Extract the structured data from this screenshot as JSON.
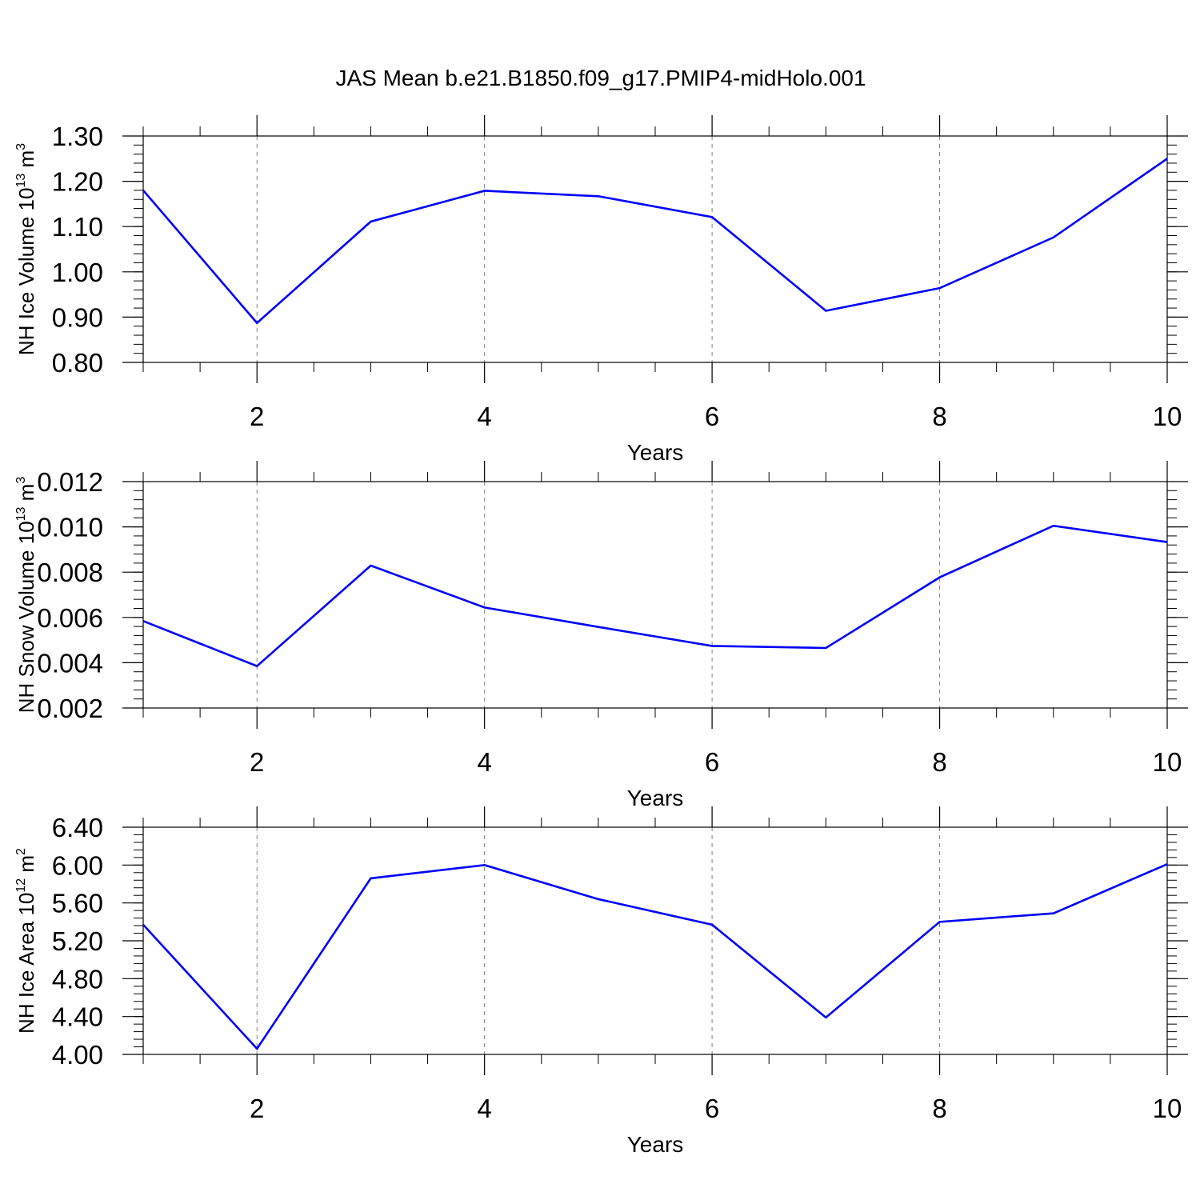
{
  "title": "JAS Mean b.e21.B1850.f09_g17.PMIP4-midHolo.001",
  "line_color": "#0000ff",
  "axis_color": "#000000",
  "grid_color": "#808080",
  "chart_data": [
    {
      "type": "line",
      "ylabel": {
        "base": "NH Ice Volume 10",
        "sup": "13",
        "unit": " m",
        "unit_sup": "3"
      },
      "xlabel": "Years",
      "xlim": [
        1,
        10
      ],
      "ylim": [
        0.8,
        1.3
      ],
      "xticks": [
        2,
        4,
        6,
        8,
        10
      ],
      "xtick_labels": [
        "2",
        "4",
        "6",
        "8",
        "10"
      ],
      "yticks": [
        0.8,
        0.9,
        1.0,
        1.1,
        1.2,
        1.3
      ],
      "ytick_labels": [
        "0.80",
        "0.90",
        "1.00",
        "1.10",
        "1.20",
        "1.30"
      ],
      "ytick_minor_step": 0.02,
      "x_gridlines": [
        2,
        4,
        6,
        8
      ],
      "grid": "dashed vertical at major x ticks",
      "x": [
        1,
        2,
        3,
        4,
        5,
        6,
        7,
        8,
        9,
        10
      ],
      "values": [
        1.18,
        0.887,
        1.111,
        1.179,
        1.167,
        1.121,
        0.914,
        0.964,
        1.076,
        1.25
      ]
    },
    {
      "type": "line",
      "ylabel": {
        "base": "NH Snow Volume 10",
        "sup": "13",
        "unit": " m",
        "unit_sup": "3"
      },
      "xlabel": "Years",
      "xlim": [
        1,
        10
      ],
      "ylim": [
        0.002,
        0.012
      ],
      "xticks": [
        2,
        4,
        6,
        8,
        10
      ],
      "xtick_labels": [
        "2",
        "4",
        "6",
        "8",
        "10"
      ],
      "yticks": [
        0.002,
        0.004,
        0.006,
        0.008,
        0.01,
        0.012
      ],
      "ytick_labels": [
        "0.002",
        "0.004",
        "0.006",
        "0.008",
        "0.010",
        "0.012"
      ],
      "ytick_minor_step": 0.0004,
      "x_gridlines": [
        2,
        4,
        6,
        8
      ],
      "grid": "dashed vertical at major x ticks",
      "x": [
        1,
        2,
        3,
        4,
        5,
        6,
        7,
        8,
        9,
        10
      ],
      "values": [
        0.00584,
        0.00385,
        0.00829,
        0.00644,
        0.00558,
        0.00474,
        0.00465,
        0.00777,
        0.01005,
        0.00933
      ]
    },
    {
      "type": "line",
      "ylabel": {
        "base": "NH Ice Area 10",
        "sup": "12",
        "unit": " m",
        "unit_sup": "2"
      },
      "xlabel": "Years",
      "xlim": [
        1,
        10
      ],
      "ylim": [
        4.0,
        6.4
      ],
      "xticks": [
        2,
        4,
        6,
        8,
        10
      ],
      "xtick_labels": [
        "2",
        "4",
        "6",
        "8",
        "10"
      ],
      "yticks": [
        4.0,
        4.4,
        4.8,
        5.2,
        5.6,
        6.0,
        6.4
      ],
      "ytick_labels": [
        "4.00",
        "4.40",
        "4.80",
        "5.20",
        "5.60",
        "6.00",
        "6.40"
      ],
      "ytick_minor_step": 0.08,
      "x_gridlines": [
        2,
        4,
        6,
        8
      ],
      "grid": "dashed vertical at major x ticks",
      "x": [
        1,
        2,
        3,
        4,
        5,
        6,
        7,
        8,
        9,
        10
      ],
      "values": [
        5.37,
        4.06,
        5.86,
        6.0,
        5.64,
        5.37,
        4.39,
        5.4,
        5.49,
        6.01
      ]
    }
  ]
}
